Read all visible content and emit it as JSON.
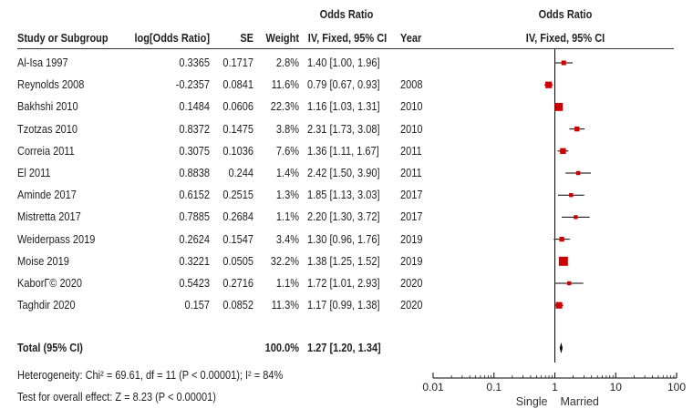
{
  "headers": {
    "study": "Study or Subgroup",
    "logor": "log[Odds Ratio]",
    "se": "SE",
    "weight": "Weight",
    "or_top": "Odds Ratio",
    "or_bottom": "IV, Fixed, 95% CI",
    "year": "Year",
    "plot_top": "Odds Ratio",
    "plot_bottom": "IV, Fixed, 95% CI"
  },
  "studies": [
    {
      "name": "Al-Isa 1997",
      "logor": "0.3365",
      "se": "0.1717",
      "weight": "2.8%",
      "ci": "1.40 [1.00, 1.96]",
      "year": ""
    },
    {
      "name": "Reynolds 2008",
      "logor": "-0.2357",
      "se": "0.0841",
      "weight": "11.6%",
      "ci": "0.79 [0.67, 0.93]",
      "year": "2008"
    },
    {
      "name": "Bakhshi 2010",
      "logor": "0.1484",
      "se": "0.0606",
      "weight": "22.3%",
      "ci": "1.16 [1.03, 1.31]",
      "year": "2010"
    },
    {
      "name": "Tzotzas 2010",
      "logor": "0.8372",
      "se": "0.1475",
      "weight": "3.8%",
      "ci": "2.31 [1.73, 3.08]",
      "year": "2010"
    },
    {
      "name": "Correia 2011",
      "logor": "0.3075",
      "se": "0.1036",
      "weight": "7.6%",
      "ci": "1.36 [1.11, 1.67]",
      "year": "2011"
    },
    {
      "name": "El 2011",
      "logor": "0.8838",
      "se": "0.244",
      "weight": "1.4%",
      "ci": "2.42 [1.50, 3.90]",
      "year": "2011"
    },
    {
      "name": "Aminde 2017",
      "logor": "0.6152",
      "se": "0.2515",
      "weight": "1.3%",
      "ci": "1.85 [1.13, 3.03]",
      "year": "2017"
    },
    {
      "name": "Mistretta 2017",
      "logor": "0.7885",
      "se": "0.2684",
      "weight": "1.1%",
      "ci": "2.20 [1.30, 3.72]",
      "year": "2017"
    },
    {
      "name": "Weiderpass 2019",
      "logor": "0.2624",
      "se": "0.1547",
      "weight": "3.4%",
      "ci": "1.30 [0.96, 1.76]",
      "year": "2019"
    },
    {
      "name": "Moise 2019",
      "logor": "0.3221",
      "se": "0.0505",
      "weight": "32.2%",
      "ci": "1.38 [1.25, 1.52]",
      "year": "2019"
    },
    {
      "name": "KaborГ© 2020",
      "logor": "0.5423",
      "se": "0.2716",
      "weight": "1.1%",
      "ci": "1.72 [1.01, 2.93]",
      "year": "2020"
    },
    {
      "name": "Taghdir 2020",
      "logor": "0.157",
      "se": "0.0852",
      "weight": "11.3%",
      "ci": "1.17 [0.99, 1.38]",
      "year": "2020"
    }
  ],
  "total": {
    "label": "Total (95% CI)",
    "weight": "100.0%",
    "ci": "1.27 [1.20, 1.34]"
  },
  "heterogeneity": "Heterogeneity: Chi² = 69.61, df = 11 (P < 0.00001); I² = 84%",
  "overall_effect": "Test for overall effect: Z = 8.23 (P < 0.00001)",
  "axis": {
    "ticks": [
      "0.01",
      "0.1",
      "1",
      "10",
      "100"
    ],
    "left_label": "Single",
    "right_label": "Married"
  },
  "chart_data": {
    "type": "forest",
    "scale": "log",
    "xlim": [
      0.01,
      100
    ],
    "x_ticks": [
      0.01,
      0.1,
      1,
      10,
      100
    ],
    "colors": {
      "marker": "#cc0000",
      "line": "#000000"
    },
    "studies": [
      {
        "or": 1.4,
        "lo": 1.0,
        "hi": 1.96,
        "weight": 2.8
      },
      {
        "or": 0.79,
        "lo": 0.67,
        "hi": 0.93,
        "weight": 11.6
      },
      {
        "or": 1.16,
        "lo": 1.03,
        "hi": 1.31,
        "weight": 22.3
      },
      {
        "or": 2.31,
        "lo": 1.73,
        "hi": 3.08,
        "weight": 3.8
      },
      {
        "or": 1.36,
        "lo": 1.11,
        "hi": 1.67,
        "weight": 7.6
      },
      {
        "or": 2.42,
        "lo": 1.5,
        "hi": 3.9,
        "weight": 1.4
      },
      {
        "or": 1.85,
        "lo": 1.13,
        "hi": 3.03,
        "weight": 1.3
      },
      {
        "or": 2.2,
        "lo": 1.3,
        "hi": 3.72,
        "weight": 1.1
      },
      {
        "or": 1.3,
        "lo": 0.96,
        "hi": 1.76,
        "weight": 3.4
      },
      {
        "or": 1.38,
        "lo": 1.25,
        "hi": 1.52,
        "weight": 32.2
      },
      {
        "or": 1.72,
        "lo": 1.01,
        "hi": 2.93,
        "weight": 1.1
      },
      {
        "or": 1.17,
        "lo": 0.99,
        "hi": 1.38,
        "weight": 11.3
      }
    ],
    "total": {
      "or": 1.27,
      "lo": 1.2,
      "hi": 1.34
    }
  }
}
